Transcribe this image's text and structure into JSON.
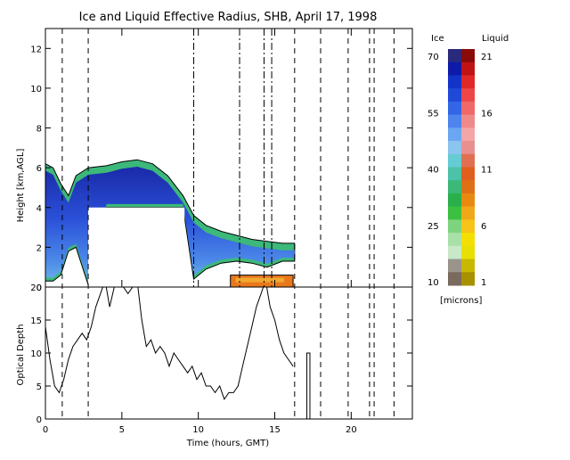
{
  "title": "Ice and Liquid Effective Radius, SHB, April 17, 1998",
  "colorbar": {
    "ice_label": "Ice",
    "liquid_label": "Liquid",
    "units": "[microns]",
    "ice_ticks": [
      "70",
      "55",
      "40",
      "25",
      "10"
    ],
    "liquid_ticks": [
      "21",
      "16",
      "11",
      "6",
      "1"
    ],
    "ice_colors": [
      "#2a2a7c",
      "#0e1aa8",
      "#1234c8",
      "#1f4ad8",
      "#3366e6",
      "#4d84ee",
      "#6aa6f2",
      "#8cc4f0",
      "#66ccd4",
      "#4cc2a8",
      "#3cb878",
      "#2ab04a",
      "#3cc040",
      "#7ed47e",
      "#a8e0a8",
      "#c8e8c8",
      "#9a948c",
      "#7a6a5e"
    ],
    "liquid_colors": [
      "#8a0a0a",
      "#c01414",
      "#e02828",
      "#ec4646",
      "#f06868",
      "#f08a8a",
      "#f4a6a6",
      "#e89090",
      "#e07050",
      "#e05e1e",
      "#e07016",
      "#e88a10",
      "#f0a818",
      "#f8c418",
      "#f4e000",
      "#e8e000",
      "#c8b800",
      "#a89000"
    ]
  },
  "chart_data": [
    {
      "type": "heatmap",
      "ylabel": "Height [km,AGL]",
      "yticks": [
        "0",
        "2",
        "4",
        "6",
        "8",
        "10",
        "12"
      ],
      "ylim": [
        0,
        13
      ],
      "xlim": [
        0,
        24
      ],
      "dashed_lines_hours": [
        1.1,
        2.8,
        16.3,
        18.0,
        19.8,
        21.2,
        21.5,
        22.8
      ],
      "dashdot_lines_hours": [
        9.7,
        12.7,
        14.3,
        14.8
      ],
      "ice_cloud": {
        "time": [
          0,
          0.5,
          1.0,
          1.5,
          2.0,
          2.8,
          4.0,
          5.0,
          6.0,
          7.0,
          8.0,
          9.0,
          9.7,
          10.5,
          11.5,
          12.5,
          13.5,
          14.5,
          15.5,
          16.3
        ],
        "top_km": [
          6.2,
          6.0,
          5.2,
          4.6,
          5.6,
          6.0,
          6.1,
          6.3,
          6.4,
          6.2,
          5.6,
          4.6,
          3.6,
          3.1,
          2.8,
          2.6,
          2.4,
          2.3,
          2.2,
          2.2
        ],
        "base_km": [
          0.3,
          0.3,
          0.6,
          1.8,
          2.0,
          0.1,
          4.0,
          4.0,
          4.0,
          4.0,
          4.0,
          4.0,
          0.4,
          0.9,
          1.2,
          1.3,
          1.2,
          1.0,
          1.3,
          1.3
        ]
      },
      "missing_block": {
        "time_start": 2.8,
        "time_end": 9.1,
        "height_top_km": 4.0
      },
      "liquid_layer": {
        "time_start": 12.1,
        "time_end": 16.2,
        "base_km": 0.0,
        "top_km": 0.6
      }
    },
    {
      "type": "line",
      "ylabel": "Optical Depth",
      "xlabel": "Time (hours, GMT)",
      "xticks": [
        "0",
        "5",
        "10",
        "15",
        "20"
      ],
      "yticks": [
        "0",
        "5",
        "10",
        "15",
        "20"
      ],
      "xlim": [
        0,
        24
      ],
      "ylim": [
        0,
        20
      ],
      "x": [
        0.0,
        0.3,
        0.6,
        0.9,
        1.2,
        1.5,
        1.8,
        2.1,
        2.4,
        2.7,
        3.0,
        3.3,
        3.6,
        3.9,
        4.2,
        4.5,
        4.8,
        5.1,
        5.4,
        5.7,
        6.0,
        6.3,
        6.6,
        6.9,
        7.2,
        7.5,
        7.8,
        8.1,
        8.4,
        8.7,
        9.0,
        9.3,
        9.6,
        9.9,
        10.2,
        10.5,
        10.8,
        11.1,
        11.4,
        11.7,
        12.0,
        12.3,
        12.6,
        12.9,
        13.2,
        13.5,
        13.8,
        14.1,
        14.4,
        14.7,
        15.0,
        15.3,
        15.6,
        15.9,
        16.2
      ],
      "y": [
        14,
        9,
        5,
        4,
        6,
        9,
        11,
        12,
        13,
        12,
        14,
        17,
        19,
        21,
        17,
        20,
        21,
        20,
        19,
        20,
        21,
        15,
        11,
        12,
        10,
        11,
        10,
        8,
        10,
        9,
        8,
        7,
        8,
        6,
        7,
        5,
        5,
        4,
        5,
        3,
        4,
        4,
        5,
        8,
        11,
        14,
        17,
        19,
        21,
        17,
        15,
        12,
        10,
        9,
        8
      ],
      "spike": {
        "x": 17.2,
        "y_bottom": 0,
        "y_top": 10
      }
    }
  ]
}
